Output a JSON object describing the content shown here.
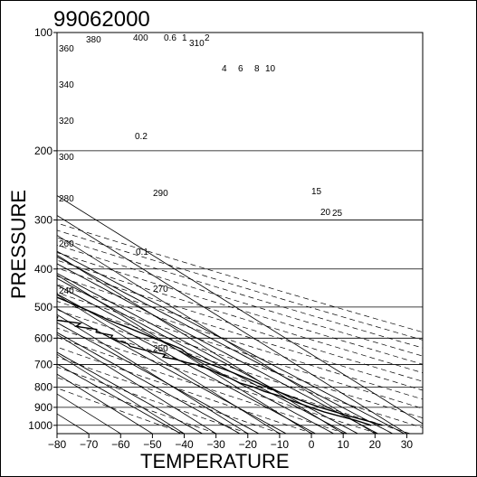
{
  "chart_data": {
    "type": "line",
    "title": "99062000",
    "xlabel": "TEMPERATURE",
    "ylabel": "PRESSURE",
    "xlim": [
      -80,
      35
    ],
    "ylim": [
      1050,
      100
    ],
    "y_scale": "log",
    "grid": true,
    "x_ticks": [
      -80,
      -70,
      -60,
      -50,
      -40,
      -30,
      -20,
      -10,
      0,
      10,
      20,
      30
    ],
    "x_tick_labels": [
      "−80",
      "−70",
      "−60",
      "−50",
      "−40",
      "−30",
      "−20",
      "−10",
      "0",
      "10",
      "20",
      "30"
    ],
    "y_ticks": [
      100,
      200,
      300,
      400,
      500,
      600,
      700,
      800,
      900,
      1000
    ],
    "y_tick_labels": [
      "100",
      "200",
      "300",
      "400",
      "500",
      "600",
      "700",
      "800",
      "900",
      "1000"
    ],
    "dry_adiabat_labels": [
      "360",
      "380",
      "400",
      "310",
      "340",
      "320",
      "300",
      "290",
      "280",
      "260",
      "270",
      "240",
      "250"
    ],
    "mixing_ratio_labels": [
      "0.6",
      "1",
      "2",
      "4",
      "6",
      "8",
      "10",
      "0.2",
      "15",
      "20",
      "25",
      "0.1"
    ],
    "series": [
      {
        "name": "temperature",
        "color": "#000000",
        "points": [
          [
            1000,
            26.5
          ],
          [
            975,
            24
          ],
          [
            950,
            21
          ],
          [
            925,
            18.5
          ],
          [
            900,
            16
          ],
          [
            875,
            14.2
          ],
          [
            850,
            12.5
          ],
          [
            825,
            11
          ],
          [
            800,
            9.5
          ],
          [
            775,
            8.5
          ],
          [
            750,
            7
          ],
          [
            725,
            5.5
          ],
          [
            700,
            3.2
          ],
          [
            680,
            2
          ],
          [
            660,
            1.2
          ],
          [
            640,
            1.8
          ],
          [
            620,
            0.5
          ],
          [
            600,
            -1.5
          ],
          [
            580,
            -3
          ],
          [
            560,
            -4.5
          ],
          [
            540,
            -6.5
          ],
          [
            520,
            -7.5
          ],
          [
            500,
            -9
          ],
          [
            480,
            -10.5
          ],
          [
            460,
            -12.5
          ],
          [
            440,
            -14.5
          ],
          [
            420,
            -17
          ],
          [
            400,
            -19.5
          ],
          [
            380,
            -22
          ],
          [
            360,
            -25
          ],
          [
            340,
            -28
          ],
          [
            320,
            -31
          ],
          [
            300,
            -34.5
          ],
          [
            280,
            -38
          ],
          [
            260,
            -41.5
          ],
          [
            250,
            -43.5
          ],
          [
            240,
            -47
          ],
          [
            230,
            -49.5
          ],
          [
            220,
            -51.5
          ],
          [
            210,
            -52.5
          ],
          [
            200,
            -52.5
          ],
          [
            190,
            -54
          ],
          [
            180,
            -55.5
          ],
          [
            170,
            -58
          ],
          [
            160,
            -61
          ],
          [
            150,
            -63
          ],
          [
            140,
            -64.5
          ],
          [
            130,
            -66
          ],
          [
            120,
            -68
          ],
          [
            110,
            -70.5
          ],
          [
            105,
            -72
          ],
          [
            100,
            -73
          ]
        ]
      },
      {
        "name": "dewpoint",
        "color": "#000000",
        "points": [
          [
            1000,
            23
          ],
          [
            970,
            20.5
          ],
          [
            950,
            18
          ],
          [
            925,
            15
          ],
          [
            900,
            13
          ],
          [
            880,
            11.5
          ],
          [
            860,
            10
          ],
          [
            840,
            9
          ],
          [
            820,
            6.5
          ],
          [
            800,
            5.5
          ],
          [
            780,
            3
          ],
          [
            760,
            2.5
          ],
          [
            740,
            1
          ],
          [
            720,
            0.5
          ],
          [
            700,
            -1.5
          ],
          [
            690,
            -4
          ],
          [
            680,
            -5
          ],
          [
            670,
            -8
          ],
          [
            660,
            -6
          ],
          [
            650,
            -9
          ],
          [
            640,
            -11
          ],
          [
            630,
            -13
          ],
          [
            620,
            -12.5
          ],
          [
            610,
            -14
          ],
          [
            600,
            -15
          ],
          [
            590,
            -13
          ],
          [
            580,
            -16.5
          ],
          [
            570,
            -15
          ],
          [
            560,
            -20
          ],
          [
            550,
            -17
          ],
          [
            540,
            -23
          ],
          [
            530,
            -21
          ],
          [
            520,
            -25
          ],
          [
            510,
            -22
          ],
          [
            500,
            -26
          ],
          [
            490,
            -24
          ],
          [
            480,
            -28
          ],
          [
            470,
            -27
          ],
          [
            460,
            -30
          ],
          [
            450,
            -31.5
          ],
          [
            440,
            -29
          ],
          [
            430,
            -31
          ],
          [
            420,
            -32.5
          ],
          [
            410,
            -31.5
          ],
          [
            400,
            -33
          ],
          [
            390,
            -34
          ],
          [
            380,
            -34.5
          ],
          [
            370,
            -37
          ],
          [
            360,
            -38
          ],
          [
            350,
            -39.5
          ],
          [
            340,
            -40.5
          ],
          [
            330,
            -41
          ],
          [
            320,
            -42.5
          ],
          [
            310,
            -41.5
          ],
          [
            300,
            -43
          ],
          [
            290,
            -44
          ],
          [
            280,
            -45.5
          ],
          [
            270,
            -47
          ],
          [
            260,
            -48.5
          ],
          [
            250,
            -50
          ]
        ]
      }
    ]
  }
}
